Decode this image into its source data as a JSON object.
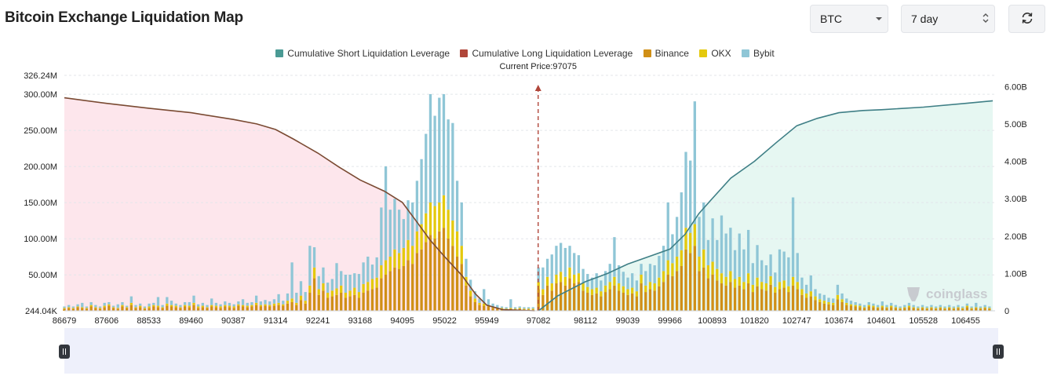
{
  "header": {
    "title": "Bitcoin Exchange Liquidation Map"
  },
  "controls": {
    "coin": "BTC",
    "range": "7 day"
  },
  "icons": {
    "dropdown": "chevron-down-icon",
    "stepper": "updown-chevron-icon",
    "refresh": "refresh-icon"
  },
  "colors": {
    "short": "#4a9a94",
    "long": "#b0463a",
    "binance": "#d08f16",
    "okx": "#e4c90d",
    "bybit": "#8fc6d6",
    "shortFill": "#e6f7f2",
    "longFill": "#fde6ec",
    "longLine": "#7a4a32",
    "shortLine": "#3f7f86",
    "priceLine": "#b0463a"
  },
  "legend": [
    {
      "label": "Cumulative Short Liquidation Leverage",
      "color": "#4a9a94"
    },
    {
      "label": "Cumulative Long Liquidation Leverage",
      "color": "#b0463a"
    },
    {
      "label": "Binance",
      "color": "#d08f16"
    },
    {
      "label": "OKX",
      "color": "#e4c90d"
    },
    {
      "label": "Bybit",
      "color": "#8fc6d6"
    }
  ],
  "watermark": "coinglass",
  "chart_data": {
    "type": "bar",
    "current_price_label": "Current Price:97075",
    "current_price": 97075,
    "x_range": [
      86679,
      107100
    ],
    "x_ticks": [
      86679,
      87606,
      88533,
      89460,
      90387,
      91314,
      92241,
      93168,
      94095,
      95022,
      95949,
      97082,
      98112,
      99039,
      99966,
      100893,
      101820,
      102747,
      103674,
      104601,
      105528,
      106455
    ],
    "y_left_ticks": [
      {
        "label": "326.24M",
        "value": 326.24
      },
      {
        "label": "300.00M",
        "value": 300
      },
      {
        "label": "250.00M",
        "value": 250
      },
      {
        "label": "200.00M",
        "value": 200
      },
      {
        "label": "150.00M",
        "value": 150
      },
      {
        "label": "100.00M",
        "value": 100
      },
      {
        "label": "50.00M",
        "value": 50
      },
      {
        "label": "244.04K",
        "value": 0.244
      }
    ],
    "y_right_ticks": [
      {
        "label": "6.00B",
        "value": 6
      },
      {
        "label": "5.00B",
        "value": 5
      },
      {
        "label": "4.00B",
        "value": 4
      },
      {
        "label": "3.00B",
        "value": 3
      },
      {
        "label": "2.00B",
        "value": 2
      },
      {
        "label": "1.00B",
        "value": 1
      },
      {
        "label": "0",
        "value": 0
      }
    ],
    "y_left_range_M": [
      0.244,
      326.24
    ],
    "y_right_range_B": [
      0,
      6.3
    ],
    "bars": [
      [
        86679,
        3,
        1,
        2
      ],
      [
        86777,
        4,
        1,
        3
      ],
      [
        86875,
        3,
        1,
        2
      ],
      [
        86973,
        5,
        1,
        3
      ],
      [
        87071,
        4,
        1,
        6
      ],
      [
        87169,
        3,
        1,
        2
      ],
      [
        87267,
        6,
        2,
        4
      ],
      [
        87365,
        4,
        1,
        3
      ],
      [
        87463,
        3,
        1,
        2
      ],
      [
        87560,
        5,
        2,
        4
      ],
      [
        87658,
        7,
        2,
        3
      ],
      [
        87756,
        4,
        1,
        2
      ],
      [
        87854,
        3,
        1,
        5
      ],
      [
        87952,
        6,
        2,
        4
      ],
      [
        88050,
        4,
        1,
        2
      ],
      [
        88148,
        8,
        3,
        9
      ],
      [
        88246,
        4,
        1,
        3
      ],
      [
        88344,
        5,
        2,
        3
      ],
      [
        88442,
        3,
        1,
        2
      ],
      [
        88540,
        4,
        2,
        4
      ],
      [
        88638,
        6,
        2,
        3
      ],
      [
        88736,
        5,
        2,
        12
      ],
      [
        88834,
        4,
        1,
        3
      ],
      [
        88932,
        7,
        3,
        9
      ],
      [
        89030,
        6,
        2,
        6
      ],
      [
        89128,
        5,
        2,
        3
      ],
      [
        89226,
        4,
        1,
        3
      ],
      [
        89324,
        6,
        2,
        4
      ],
      [
        89422,
        5,
        2,
        5
      ],
      [
        89520,
        8,
        3,
        10
      ],
      [
        89617,
        4,
        2,
        3
      ],
      [
        89715,
        5,
        2,
        4
      ],
      [
        89813,
        4,
        1,
        3
      ],
      [
        89911,
        6,
        2,
        9
      ],
      [
        90009,
        5,
        2,
        4
      ],
      [
        90107,
        4,
        2,
        3
      ],
      [
        90205,
        6,
        2,
        5
      ],
      [
        90303,
        5,
        2,
        4
      ],
      [
        90401,
        4,
        2,
        3
      ],
      [
        90499,
        7,
        2,
        4
      ],
      [
        90597,
        6,
        2,
        8
      ],
      [
        90695,
        5,
        2,
        4
      ],
      [
        90793,
        6,
        2,
        4
      ],
      [
        90891,
        8,
        3,
        10
      ],
      [
        90989,
        6,
        2,
        5
      ],
      [
        91087,
        7,
        2,
        6
      ],
      [
        91185,
        6,
        2,
        5
      ],
      [
        91283,
        7,
        3,
        6
      ],
      [
        91381,
        8,
        3,
        12
      ],
      [
        91479,
        7,
        2,
        5
      ],
      [
        91577,
        10,
        4,
        10
      ],
      [
        91674,
        12,
        5,
        50
      ],
      [
        91772,
        8,
        3,
        14
      ],
      [
        91870,
        15,
        6,
        20
      ],
      [
        91968,
        10,
        4,
        12
      ],
      [
        92066,
        25,
        10,
        55
      ],
      [
        92164,
        45,
        15,
        28
      ],
      [
        92262,
        22,
        8,
        18
      ],
      [
        92360,
        28,
        10,
        22
      ],
      [
        92458,
        18,
        7,
        14
      ],
      [
        92556,
        20,
        8,
        16
      ],
      [
        92654,
        22,
        9,
        35
      ],
      [
        92752,
        25,
        10,
        20
      ],
      [
        92850,
        18,
        7,
        25
      ],
      [
        92948,
        20,
        8,
        22
      ],
      [
        93046,
        22,
        10,
        20
      ],
      [
        93144,
        18,
        8,
        25
      ],
      [
        93241,
        25,
        12,
        30
      ],
      [
        93339,
        28,
        12,
        35
      ],
      [
        93437,
        30,
        14,
        20
      ],
      [
        93535,
        32,
        14,
        28
      ],
      [
        93633,
        45,
        18,
        80
      ],
      [
        93731,
        50,
        20,
        130
      ],
      [
        93829,
        55,
        20,
        65
      ],
      [
        93927,
        60,
        25,
        70
      ],
      [
        94025,
        58,
        22,
        60
      ],
      [
        94123,
        62,
        25,
        40
      ],
      [
        94221,
        70,
        28,
        55
      ],
      [
        94319,
        65,
        25,
        60
      ],
      [
        94417,
        80,
        30,
        70
      ],
      [
        94515,
        85,
        35,
        90
      ],
      [
        94613,
        95,
        40,
        110
      ],
      [
        94711,
        105,
        45,
        150
      ],
      [
        94808,
        100,
        45,
        125
      ],
      [
        94906,
        110,
        40,
        145
      ],
      [
        95004,
        115,
        45,
        140
      ],
      [
        95102,
        100,
        40,
        125
      ],
      [
        95200,
        90,
        35,
        135
      ],
      [
        95298,
        75,
        35,
        70
      ],
      [
        95396,
        65,
        25,
        60
      ],
      [
        95494,
        35,
        12,
        25
      ],
      [
        95592,
        20,
        8,
        15
      ],
      [
        95690,
        12,
        5,
        10
      ],
      [
        95788,
        8,
        3,
        6
      ],
      [
        95886,
        7,
        3,
        20
      ],
      [
        95984,
        6,
        2,
        8
      ],
      [
        96082,
        4,
        1,
        5
      ],
      [
        96180,
        3,
        1,
        4
      ],
      [
        96278,
        3,
        1,
        2
      ],
      [
        96376,
        2,
        1,
        2
      ],
      [
        96474,
        3,
        1,
        12
      ],
      [
        96572,
        2,
        1,
        2
      ],
      [
        96670,
        3,
        1,
        2
      ],
      [
        96768,
        2,
        1,
        2
      ],
      [
        96866,
        2,
        1,
        2
      ],
      [
        96963,
        2,
        1,
        2
      ],
      [
        97082,
        30,
        10,
        20
      ],
      [
        97180,
        22,
        8,
        30
      ],
      [
        97278,
        35,
        12,
        25
      ],
      [
        97376,
        28,
        10,
        40
      ],
      [
        97474,
        38,
        12,
        40
      ],
      [
        97572,
        40,
        14,
        40
      ],
      [
        97670,
        35,
        12,
        40
      ],
      [
        97768,
        45,
        15,
        30
      ],
      [
        97866,
        38,
        12,
        30
      ],
      [
        97964,
        40,
        12,
        25
      ],
      [
        98062,
        28,
        10,
        20
      ],
      [
        98160,
        25,
        8,
        18
      ],
      [
        98258,
        22,
        8,
        16
      ],
      [
        98356,
        24,
        8,
        20
      ],
      [
        98454,
        20,
        7,
        15
      ],
      [
        98552,
        26,
        9,
        20
      ],
      [
        98650,
        30,
        10,
        25
      ],
      [
        98748,
        35,
        12,
        55
      ],
      [
        98846,
        28,
        10,
        25
      ],
      [
        98944,
        25,
        9,
        20
      ],
      [
        99042,
        22,
        8,
        16
      ],
      [
        99140,
        24,
        8,
        20
      ],
      [
        99238,
        20,
        7,
        15
      ],
      [
        99336,
        38,
        12,
        15
      ],
      [
        99434,
        26,
        9,
        20
      ],
      [
        99532,
        30,
        10,
        25
      ],
      [
        99630,
        28,
        10,
        25
      ],
      [
        99728,
        34,
        12,
        30
      ],
      [
        99826,
        40,
        15,
        35
      ],
      [
        99924,
        50,
        20,
        80
      ],
      [
        100022,
        48,
        18,
        40
      ],
      [
        100120,
        55,
        20,
        55
      ],
      [
        100218,
        62,
        22,
        80
      ],
      [
        100316,
        85,
        30,
        105
      ],
      [
        100414,
        80,
        28,
        100
      ],
      [
        100511,
        90,
        30,
        170
      ],
      [
        100609,
        55,
        20,
        55
      ],
      [
        100707,
        60,
        25,
        65
      ],
      [
        100805,
        45,
        18,
        35
      ],
      [
        100903,
        50,
        18,
        60
      ],
      [
        101001,
        42,
        16,
        40
      ],
      [
        101099,
        38,
        14,
        80
      ],
      [
        101197,
        35,
        12,
        60
      ],
      [
        101295,
        40,
        15,
        60
      ],
      [
        101393,
        32,
        12,
        40
      ],
      [
        101491,
        35,
        12,
        60
      ],
      [
        101589,
        30,
        10,
        45
      ],
      [
        101687,
        38,
        14,
        60
      ],
      [
        101785,
        26,
        10,
        30
      ],
      [
        101883,
        34,
        12,
        45
      ],
      [
        101981,
        30,
        10,
        30
      ],
      [
        102079,
        28,
        10,
        25
      ],
      [
        102177,
        36,
        12,
        30
      ],
      [
        102275,
        25,
        8,
        20
      ],
      [
        102373,
        30,
        10,
        45
      ],
      [
        102471,
        32,
        10,
        40
      ],
      [
        102569,
        26,
        8,
        40
      ],
      [
        102667,
        35,
        12,
        110
      ],
      [
        102765,
        30,
        10,
        40
      ],
      [
        102863,
        22,
        8,
        16
      ],
      [
        102961,
        18,
        6,
        12
      ],
      [
        103059,
        20,
        7,
        22
      ],
      [
        103157,
        15,
        5,
        10
      ],
      [
        103255,
        12,
        4,
        8
      ],
      [
        103352,
        10,
        4,
        8
      ],
      [
        103450,
        9,
        3,
        6
      ],
      [
        103548,
        8,
        3,
        6
      ],
      [
        103646,
        16,
        6,
        14
      ],
      [
        103744,
        12,
        4,
        8
      ],
      [
        103842,
        8,
        3,
        6
      ],
      [
        103940,
        7,
        2,
        5
      ],
      [
        104038,
        6,
        2,
        4
      ],
      [
        104136,
        5,
        2,
        3
      ],
      [
        104234,
        4,
        1,
        3
      ],
      [
        104332,
        6,
        2,
        4
      ],
      [
        104430,
        5,
        2,
        3
      ],
      [
        104528,
        4,
        1,
        3
      ],
      [
        104626,
        5,
        2,
        6
      ],
      [
        104724,
        4,
        1,
        3
      ],
      [
        104822,
        5,
        2,
        4
      ],
      [
        104920,
        4,
        1,
        3
      ],
      [
        105018,
        3,
        1,
        2
      ],
      [
        105116,
        4,
        1,
        3
      ],
      [
        105214,
        5,
        2,
        4
      ],
      [
        105312,
        4,
        1,
        3
      ],
      [
        105410,
        3,
        1,
        2
      ],
      [
        105508,
        4,
        1,
        3
      ],
      [
        105606,
        3,
        1,
        2
      ],
      [
        105704,
        4,
        1,
        3
      ],
      [
        105802,
        3,
        1,
        2
      ],
      [
        105900,
        4,
        1,
        3
      ],
      [
        105998,
        3,
        1,
        2
      ],
      [
        106096,
        4,
        1,
        3
      ],
      [
        106193,
        3,
        1,
        2
      ],
      [
        106291,
        4,
        1,
        3
      ],
      [
        106389,
        3,
        1,
        2
      ],
      [
        106487,
        5,
        2,
        3
      ],
      [
        106585,
        3,
        1,
        2
      ],
      [
        106683,
        4,
        1,
        6
      ],
      [
        106781,
        3,
        1,
        2
      ],
      [
        106879,
        4,
        1,
        3
      ],
      [
        106977,
        3,
        1,
        2
      ]
    ],
    "long_cum_B": [
      [
        86679,
        5.7
      ],
      [
        87606,
        5.55
      ],
      [
        88533,
        5.42
      ],
      [
        89460,
        5.3
      ],
      [
        90387,
        5.12
      ],
      [
        90900,
        5.0
      ],
      [
        91314,
        4.85
      ],
      [
        91700,
        4.6
      ],
      [
        92241,
        4.22
      ],
      [
        92700,
        3.85
      ],
      [
        93168,
        3.5
      ],
      [
        93700,
        3.2
      ],
      [
        94095,
        2.9
      ],
      [
        94400,
        2.4
      ],
      [
        94700,
        1.9
      ],
      [
        95022,
        1.45
      ],
      [
        95400,
        0.95
      ],
      [
        95700,
        0.45
      ],
      [
        95949,
        0.15
      ],
      [
        96300,
        0.03
      ],
      [
        97000,
        0.0
      ]
    ],
    "short_cum_B": [
      [
        97082,
        0.0
      ],
      [
        97500,
        0.4
      ],
      [
        98112,
        0.78
      ],
      [
        98600,
        1.0
      ],
      [
        99039,
        1.25
      ],
      [
        99500,
        1.45
      ],
      [
        99966,
        1.65
      ],
      [
        100300,
        2.05
      ],
      [
        100600,
        2.6
      ],
      [
        100893,
        3.0
      ],
      [
        101300,
        3.55
      ],
      [
        101820,
        4.0
      ],
      [
        102300,
        4.5
      ],
      [
        102747,
        4.95
      ],
      [
        103200,
        5.15
      ],
      [
        103674,
        5.3
      ],
      [
        104200,
        5.36
      ],
      [
        104601,
        5.38
      ],
      [
        105528,
        5.45
      ],
      [
        106455,
        5.55
      ],
      [
        107050,
        5.62
      ]
    ]
  }
}
